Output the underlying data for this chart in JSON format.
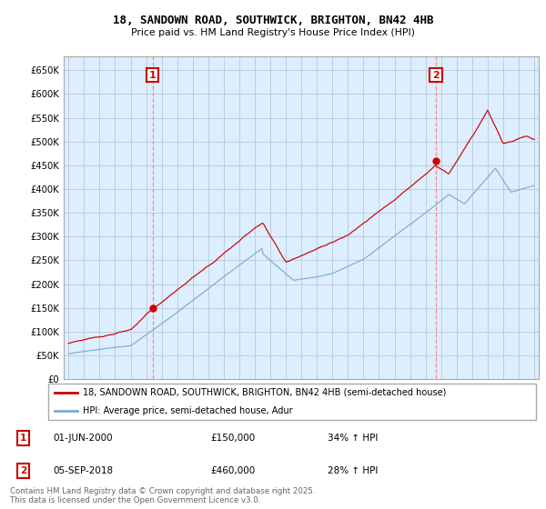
{
  "title_line1": "18, SANDOWN ROAD, SOUTHWICK, BRIGHTON, BN42 4HB",
  "title_line2": "Price paid vs. HM Land Registry's House Price Index (HPI)",
  "color_price": "#cc0000",
  "color_hpi": "#7aadcf",
  "color_vline": "#ff8888",
  "color_bg_chart": "#ddeeff",
  "legend_label1": "18, SANDOWN ROAD, SOUTHWICK, BRIGHTON, BN42 4HB (semi-detached house)",
  "legend_label2": "HPI: Average price, semi-detached house, Adur",
  "annotation1_label": "1",
  "annotation1_date": "01-JUN-2000",
  "annotation1_price": "£150,000",
  "annotation1_hpi": "34% ↑ HPI",
  "annotation2_label": "2",
  "annotation2_date": "05-SEP-2018",
  "annotation2_price": "£460,000",
  "annotation2_hpi": "28% ↑ HPI",
  "footnote": "Contains HM Land Registry data © Crown copyright and database right 2025.\nThis data is licensed under the Open Government Licence v3.0.",
  "bg_color": "#ffffff",
  "grid_color": "#bbccdd"
}
